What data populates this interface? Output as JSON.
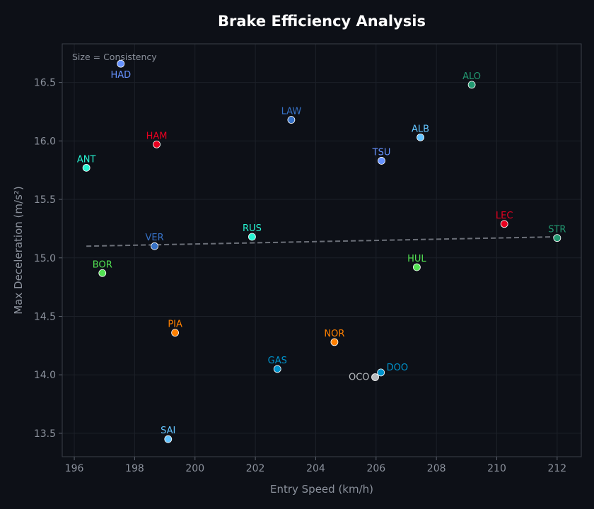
{
  "chart_data": {
    "type": "scatter",
    "title": "Brake Efficiency Analysis",
    "xlabel": "Entry Speed (km/h)",
    "ylabel": "Max Deceleration (m/s²)",
    "annotation": "Size = Consistency",
    "xlim": [
      195.6,
      212.8
    ],
    "ylim": [
      13.3,
      16.83
    ],
    "xticks": [
      196,
      198,
      200,
      202,
      204,
      206,
      208,
      210,
      212
    ],
    "yticks": [
      13.5,
      14.0,
      14.5,
      15.0,
      15.5,
      16.0,
      16.5
    ],
    "grid": true,
    "trendline": {
      "x": [
        196.4,
        212.0
      ],
      "y": [
        15.1,
        15.18
      ],
      "color": "#6b6f78",
      "style": "dashed"
    },
    "points": [
      {
        "label": "HAD",
        "x": 197.54,
        "y": 16.66,
        "color": "#6692FF"
      },
      {
        "label": "LAW",
        "x": 203.19,
        "y": 16.18,
        "color": "#3671C6"
      },
      {
        "label": "ALO",
        "x": 209.17,
        "y": 16.48,
        "color": "#229971"
      },
      {
        "label": "ALB",
        "x": 207.47,
        "y": 16.03,
        "color": "#64C4FF"
      },
      {
        "label": "TSU",
        "x": 206.18,
        "y": 15.83,
        "color": "#6692FF"
      },
      {
        "label": "HAM",
        "x": 198.73,
        "y": 15.97,
        "color": "#E80020"
      },
      {
        "label": "ANT",
        "x": 196.4,
        "y": 15.77,
        "color": "#27F4D2"
      },
      {
        "label": "LEC",
        "x": 210.25,
        "y": 15.29,
        "color": "#E80020"
      },
      {
        "label": "STR",
        "x": 212.0,
        "y": 15.17,
        "color": "#229971"
      },
      {
        "label": "RUS",
        "x": 201.89,
        "y": 15.18,
        "color": "#27F4D2"
      },
      {
        "label": "VER",
        "x": 198.66,
        "y": 15.1,
        "color": "#3671C6"
      },
      {
        "label": "HUL",
        "x": 207.35,
        "y": 14.92,
        "color": "#52E252"
      },
      {
        "label": "BOR",
        "x": 196.93,
        "y": 14.87,
        "color": "#52E252"
      },
      {
        "label": "PIA",
        "x": 199.34,
        "y": 14.36,
        "color": "#FF8000"
      },
      {
        "label": "NOR",
        "x": 204.62,
        "y": 14.28,
        "color": "#FF8000"
      },
      {
        "label": "GAS",
        "x": 202.73,
        "y": 14.05,
        "color": "#0093CC"
      },
      {
        "label": "DOO",
        "x": 206.16,
        "y": 14.02,
        "color": "#0093CC"
      },
      {
        "label": "OCO",
        "x": 205.97,
        "y": 13.98,
        "color": "#B6BABD"
      },
      {
        "label": "SAI",
        "x": 199.11,
        "y": 13.45,
        "color": "#64C4FF"
      }
    ]
  }
}
